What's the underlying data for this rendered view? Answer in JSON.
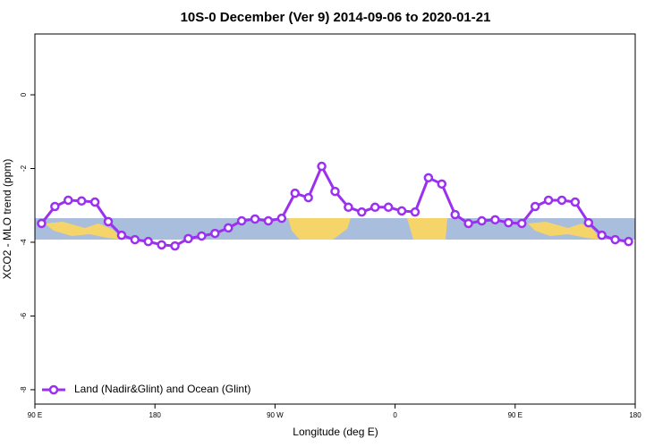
{
  "chart_data": {
    "type": "line",
    "title": "10S-0 December (Ver 9)   2014-09-06 to 2020-01-21",
    "xlabel": "Longitude (deg E)",
    "ylabel": "XCO2 - MLO trend (ppm)",
    "x": [
      95,
      105,
      115,
      125,
      135,
      145,
      155,
      165,
      175,
      185,
      195,
      205,
      215,
      225,
      235,
      245,
      255,
      265,
      275,
      285,
      295,
      305,
      315,
      325,
      335,
      345,
      355,
      365,
      375,
      385,
      395,
      405,
      415,
      425,
      435,
      445,
      455,
      465,
      475,
      485,
      495,
      505,
      515,
      525,
      535
    ],
    "series": [
      {
        "name": "Land (Nadir&Glint) and Ocean (Glint)",
        "color": "#9b30f0",
        "values": [
          -3.49,
          -3.03,
          -2.86,
          -2.88,
          -2.91,
          -3.44,
          -3.81,
          -3.93,
          -3.98,
          -4.07,
          -4.1,
          -3.9,
          -3.83,
          -3.76,
          -3.61,
          -3.42,
          -3.37,
          -3.42,
          -3.35,
          -2.67,
          -2.79,
          -1.94,
          -2.62,
          -3.05,
          -3.18,
          -3.05,
          -3.05,
          -3.15,
          -3.18,
          -2.25,
          -2.42,
          -3.25,
          -3.49,
          -3.42,
          -3.39,
          -3.47,
          -3.49,
          -3.03,
          -2.86,
          -2.86,
          -2.91,
          -3.47,
          -3.81,
          -3.93,
          -3.98
        ]
      }
    ],
    "xlim": [
      90,
      540
    ],
    "xticks": [
      {
        "value": 90,
        "label": "90 E"
      },
      180,
      {
        "value": 270,
        "label": "90 W"
      },
      {
        "value": 360,
        "label": "0"
      },
      {
        "value": 450,
        "label": "90 E"
      },
      {
        "value": 540,
        "label": "180"
      }
    ],
    "ylim": [
      -8.39,
      1.65
    ],
    "yticks": [
      0,
      -2,
      -4,
      -6,
      -8
    ],
    "legend": "bottom-left"
  }
}
